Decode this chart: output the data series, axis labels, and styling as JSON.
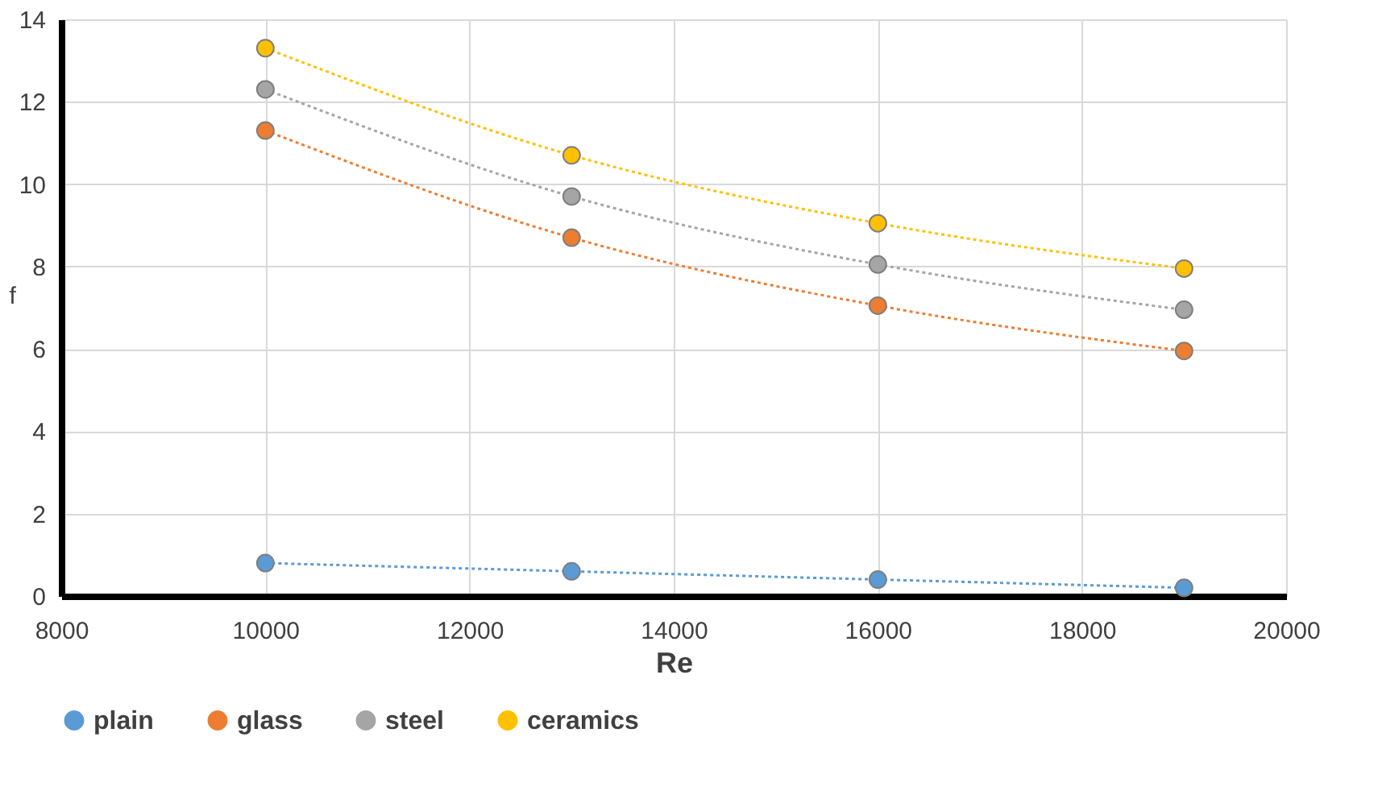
{
  "chart_data": {
    "type": "line",
    "xlabel": "Re",
    "ylabel": "f",
    "x": [
      10000,
      13000,
      16000,
      19000
    ],
    "series": [
      {
        "name": "plain",
        "color": "#5b9bd5",
        "values": [
          0.8,
          0.6,
          0.4,
          0.2
        ]
      },
      {
        "name": "glass",
        "color": "#ed7d31",
        "values": [
          11.3,
          8.7,
          7.05,
          5.95
        ]
      },
      {
        "name": "steel",
        "color": "#a5a5a5",
        "values": [
          12.3,
          9.7,
          8.05,
          6.95
        ]
      },
      {
        "name": "ceramics",
        "color": "#ffc000",
        "values": [
          13.3,
          10.7,
          9.05,
          7.95
        ]
      }
    ],
    "xlim": [
      8000,
      20000
    ],
    "xticks": [
      8000,
      10000,
      12000,
      14000,
      16000,
      18000,
      20000
    ],
    "ylim": [
      0,
      14
    ],
    "yticks": [
      0,
      2,
      4,
      6,
      8,
      10,
      12,
      14
    ],
    "grid": true,
    "legend": "bottom",
    "marker": "circle",
    "line_style": "dotted"
  }
}
